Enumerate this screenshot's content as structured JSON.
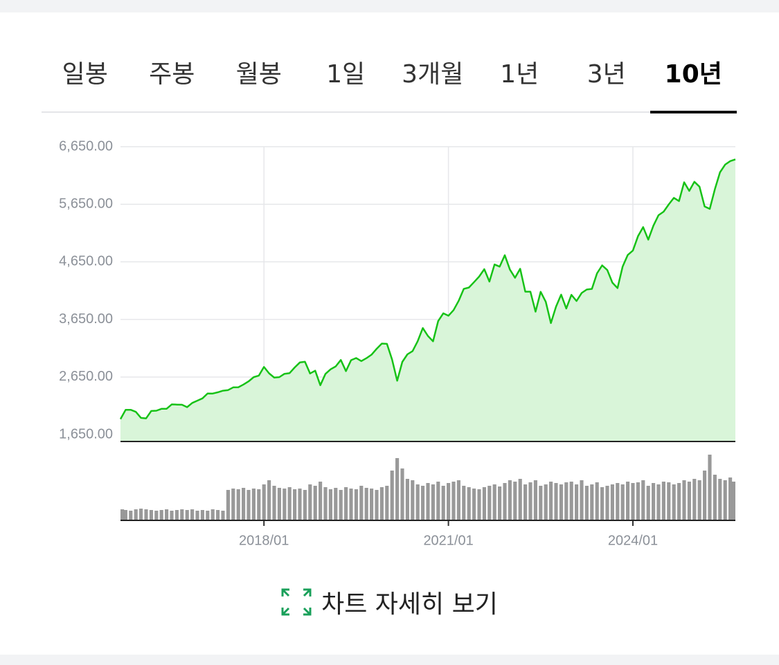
{
  "tabs": [
    "일봉",
    "주봉",
    "월봉",
    "1일",
    "3개월",
    "1년",
    "3년",
    "10년"
  ],
  "active_tab": 7,
  "chart_data": {
    "type": "line",
    "x": [
      "2015/09",
      "2015/10",
      "2015/11",
      "2015/12",
      "2016/01",
      "2016/02",
      "2016/03",
      "2016/04",
      "2016/05",
      "2016/06",
      "2016/07",
      "2016/08",
      "2016/09",
      "2016/10",
      "2016/11",
      "2016/12",
      "2017/01",
      "2017/02",
      "2017/03",
      "2017/04",
      "2017/05",
      "2017/06",
      "2017/07",
      "2017/08",
      "2017/09",
      "2017/10",
      "2017/11",
      "2017/12",
      "2018/01",
      "2018/02",
      "2018/03",
      "2018/04",
      "2018/05",
      "2018/06",
      "2018/07",
      "2018/08",
      "2018/09",
      "2018/10",
      "2018/11",
      "2018/12",
      "2019/01",
      "2019/02",
      "2019/03",
      "2019/04",
      "2019/05",
      "2019/06",
      "2019/07",
      "2019/08",
      "2019/09",
      "2019/10",
      "2019/11",
      "2019/12",
      "2020/01",
      "2020/02",
      "2020/03",
      "2020/04",
      "2020/05",
      "2020/06",
      "2020/07",
      "2020/08",
      "2020/09",
      "2020/10",
      "2020/11",
      "2020/12",
      "2021/01",
      "2021/02",
      "2021/03",
      "2021/04",
      "2021/05",
      "2021/06",
      "2021/07",
      "2021/08",
      "2021/09",
      "2021/10",
      "2021/11",
      "2021/12",
      "2022/01",
      "2022/02",
      "2022/03",
      "2022/04",
      "2022/05",
      "2022/06",
      "2022/07",
      "2022/08",
      "2022/09",
      "2022/10",
      "2022/11",
      "2022/12",
      "2023/01",
      "2023/02",
      "2023/03",
      "2023/04",
      "2023/05",
      "2023/06",
      "2023/07",
      "2023/08",
      "2023/09",
      "2023/10",
      "2023/11",
      "2023/12",
      "2024/01",
      "2024/02",
      "2024/03",
      "2024/04",
      "2024/05",
      "2024/06",
      "2024/07",
      "2024/08",
      "2024/09",
      "2024/10",
      "2024/11",
      "2024/12",
      "2025/01",
      "2025/02",
      "2025/03",
      "2025/04",
      "2025/05",
      "2025/06",
      "2025/07",
      "2025/08",
      "2025/09"
    ],
    "values": [
      1920,
      2079,
      2080,
      2044,
      1940,
      1932,
      2060,
      2065,
      2097,
      2099,
      2174,
      2171,
      2168,
      2126,
      2199,
      2239,
      2279,
      2364,
      2363,
      2384,
      2412,
      2423,
      2470,
      2472,
      2519,
      2575,
      2648,
      2674,
      2824,
      2714,
      2641,
      2648,
      2705,
      2718,
      2816,
      2902,
      2914,
      2712,
      2760,
      2507,
      2704,
      2784,
      2834,
      2946,
      2752,
      2942,
      2980,
      2926,
      2977,
      3038,
      3141,
      3231,
      3226,
      2954,
      2585,
      2912,
      3044,
      3100,
      3271,
      3500,
      3363,
      3270,
      3622,
      3756,
      3714,
      3811,
      3973,
      4181,
      4204,
      4298,
      4395,
      4523,
      4308,
      4605,
      4567,
      4766,
      4516,
      4374,
      4530,
      4132,
      4132,
      3785,
      4130,
      3955,
      3586,
      3872,
      4080,
      3840,
      4077,
      3970,
      4109,
      4169,
      4180,
      4450,
      4589,
      4508,
      4288,
      4194,
      4568,
      4770,
      4846,
      5096,
      5254,
      5036,
      5278,
      5460,
      5522,
      5648,
      5762,
      5705,
      6032,
      5882,
      6041,
      5955,
      5612,
      5569,
      5912,
      6205,
      6339,
      6400,
      6430
    ],
    "volume": [
      16,
      15,
      14,
      16,
      17,
      16,
      15,
      14,
      15,
      16,
      14,
      15,
      16,
      15,
      16,
      14,
      15,
      14,
      16,
      15,
      14,
      44,
      46,
      45,
      47,
      44,
      46,
      45,
      52,
      58,
      50,
      47,
      46,
      48,
      45,
      46,
      44,
      52,
      50,
      56,
      48,
      45,
      47,
      44,
      48,
      46,
      45,
      50,
      47,
      46,
      44,
      48,
      50,
      72,
      90,
      75,
      60,
      58,
      52,
      50,
      54,
      52,
      56,
      50,
      54,
      56,
      58,
      50,
      48,
      46,
      45,
      48,
      50,
      52,
      49,
      54,
      58,
      56,
      60,
      52,
      55,
      58,
      50,
      52,
      56,
      54,
      52,
      55,
      56,
      52,
      58,
      50,
      52,
      55,
      48,
      50,
      52,
      54,
      52,
      56,
      54,
      55,
      58,
      50,
      54,
      52,
      56,
      55,
      52,
      54,
      58,
      56,
      60,
      58,
      72,
      95,
      66,
      60,
      58,
      62,
      56
    ],
    "color": "#17c217",
    "fill_color": "#d9f5d9",
    "volume_color": "#999999",
    "vlim": [
      0,
      100
    ],
    "ylim": [
      1530,
      6650
    ],
    "yticks": [
      {
        "value": 1650,
        "label": "1,650.00"
      },
      {
        "value": 2650,
        "label": "2,650.00"
      },
      {
        "value": 3650,
        "label": "3,650.00"
      },
      {
        "value": 4650,
        "label": "4,650.00"
      },
      {
        "value": 5650,
        "label": "5,650.00"
      },
      {
        "value": 6650,
        "label": "6,650.00"
      }
    ],
    "xticks": [
      "2018/01",
      "2021/01",
      "2024/01"
    ],
    "grid": true
  },
  "detail_button": "차트 자세히 보기"
}
